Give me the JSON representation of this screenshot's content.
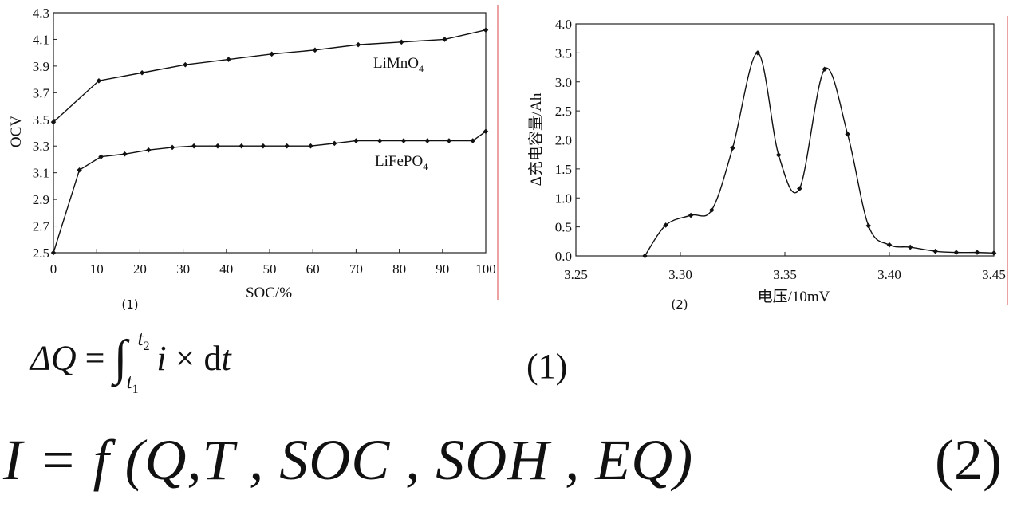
{
  "chart_data": [
    {
      "type": "line",
      "caption": "(1)",
      "xlabel": "SOC/%",
      "ylabel": "OCV",
      "xlim": [
        0,
        100
      ],
      "ylim": [
        2.5,
        4.3
      ],
      "xticks": [
        0,
        10,
        20,
        30,
        40,
        50,
        60,
        70,
        80,
        90,
        100
      ],
      "yticks": [
        "2.5",
        "2.7",
        "2.9",
        "3.1",
        "3.3",
        "3.5",
        "3.7",
        "3.9",
        "4.1",
        "4.3"
      ],
      "series": [
        {
          "name": "LiMnO4",
          "label_main": "LiMnO",
          "label_sub": "4",
          "x": [
            0,
            10.5,
            20.5,
            30.5,
            40.5,
            50.5,
            60.5,
            70.5,
            80.5,
            90.5,
            100
          ],
          "y": [
            3.48,
            3.79,
            3.85,
            3.91,
            3.95,
            3.99,
            4.02,
            4.06,
            4.08,
            4.1,
            4.17
          ]
        },
        {
          "name": "LiFePO4",
          "label_main": "LiFePO",
          "label_sub": "4",
          "x": [
            0,
            6,
            11,
            16.5,
            22,
            27.5,
            32.5,
            38,
            43.5,
            48.5,
            54,
            59.5,
            65,
            70,
            75.5,
            81,
            86.5,
            91.5,
            97,
            100
          ],
          "y": [
            2.5,
            3.12,
            3.22,
            3.24,
            3.27,
            3.29,
            3.3,
            3.3,
            3.3,
            3.3,
            3.3,
            3.3,
            3.32,
            3.34,
            3.34,
            3.34,
            3.34,
            3.34,
            3.34,
            3.41
          ]
        }
      ]
    },
    {
      "type": "line",
      "caption": "(2)",
      "xlabel": "电压/10mV",
      "ylabel": "Δ充电容量/Ah",
      "xlim": [
        3.25,
        3.45
      ],
      "ylim": [
        0,
        4.0
      ],
      "xticks": [
        "3.25",
        "3.30",
        "3.35",
        "3.40",
        "3.45"
      ],
      "yticks": [
        "0.0",
        "0.5",
        "1.0",
        "1.5",
        "2.0",
        "2.5",
        "3.0",
        "3.5",
        "4.0"
      ],
      "series": [
        {
          "x": [
            3.283,
            3.293,
            3.305,
            3.315,
            3.325,
            3.337,
            3.347,
            3.357,
            3.369,
            3.38,
            3.39,
            3.4,
            3.41,
            3.422,
            3.432,
            3.442,
            3.45
          ],
          "y": [
            0.0,
            0.53,
            0.7,
            0.79,
            1.86,
            3.5,
            1.74,
            1.16,
            3.22,
            2.1,
            0.52,
            0.19,
            0.15,
            0.08,
            0.06,
            0.06,
            0.05
          ]
        }
      ]
    }
  ],
  "equations": {
    "eq1": {
      "lhs": "ΔQ",
      "eq": "=",
      "upper": "t",
      "upper_sub": "2",
      "lower": "t",
      "lower_sub": "1",
      "integrand": "i",
      "times": "×",
      "d": "d",
      "var": "t",
      "number": "(1)"
    },
    "eq2": {
      "text": "I = f (Q,T , SOC , SOH , EQ)",
      "number": "(2)"
    }
  }
}
